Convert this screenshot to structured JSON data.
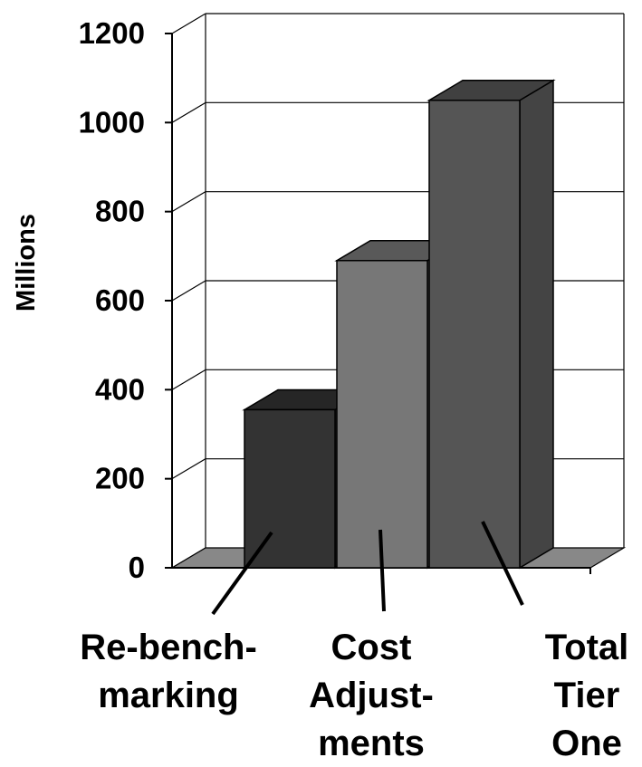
{
  "chart_data": {
    "type": "bar",
    "ylabel": "Millions",
    "ylim": [
      0,
      1200
    ],
    "yticks": [
      "0",
      "200",
      "400",
      "600",
      "800",
      "1000",
      "1200"
    ],
    "grid": true,
    "categories": [
      "Re-bench-marking",
      "Cost Adjust-ments",
      "Total Tier One"
    ],
    "category_lines": [
      [
        "Re-bench-",
        "marking"
      ],
      [
        "Cost",
        "Adjust-",
        "ments"
      ],
      [
        "Total",
        "Tier",
        "One"
      ]
    ],
    "values": [
      355,
      690,
      1050
    ],
    "colors": {
      "bars": [
        "#333333",
        "#777777",
        "#555555"
      ],
      "floor": "#888888",
      "grid": "#000000"
    }
  }
}
